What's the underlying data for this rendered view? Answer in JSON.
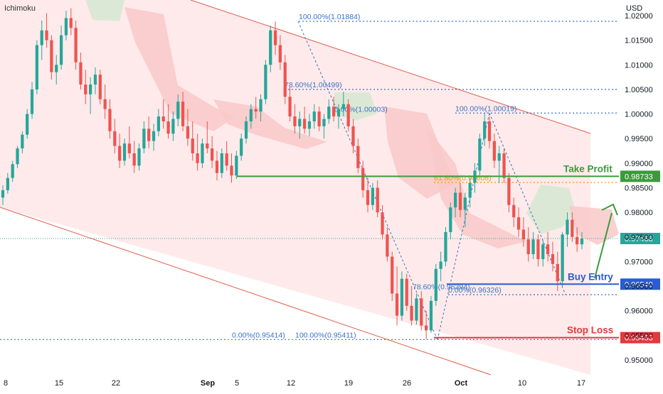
{
  "header": {
    "indicator": "Ichimoku",
    "currency": "USD"
  },
  "colors": {
    "up": "#26a69a",
    "down": "#ef5350",
    "channel_fill": "#fde3e3",
    "channel_line": "#e25b4a",
    "cloud_red": "#f9c9c9",
    "cloud_green": "#d6e8d2",
    "fib": "#3a73c4",
    "green_line": "#3c9a3c",
    "blue_line": "#2a5bd7",
    "red_line": "#e0393e",
    "gold": "#e0a100",
    "axis_text": "#131722",
    "current_label": "#26a69a"
  },
  "chart_data": {
    "type": "candlestick",
    "y_axis": {
      "min": 0.945,
      "max": 1.025,
      "ticks": [
        "0.95000",
        "0.95500",
        "0.96000",
        "0.96500",
        "0.97000",
        "0.97500",
        "0.98000",
        "0.98500",
        "0.99000",
        "0.99500",
        "1.00000",
        "1.00500",
        "1.01000",
        "1.01500",
        "1.02000"
      ]
    },
    "x_axis": {
      "ticks": [
        "8",
        "15",
        "22",
        "Sep",
        "5",
        "12",
        "19",
        "26",
        "Oct",
        "10",
        "17"
      ]
    },
    "candles": [
      [
        0.983,
        0.9855,
        0.9815,
        0.9845
      ],
      [
        0.9845,
        0.988,
        0.9838,
        0.987
      ],
      [
        0.987,
        0.9905,
        0.9862,
        0.9898
      ],
      [
        0.9898,
        0.9935,
        0.989,
        0.993
      ],
      [
        0.993,
        0.9965,
        0.992,
        0.9958
      ],
      [
        0.9958,
        1.001,
        0.995,
        1.0
      ],
      [
        1.0,
        1.0065,
        0.999,
        1.005
      ],
      [
        1.005,
        1.015,
        1.004,
        1.014
      ],
      [
        1.014,
        1.019,
        1.011,
        1.017
      ],
      [
        1.017,
        1.0205,
        1.0135,
        1.015
      ],
      [
        1.015,
        1.016,
        1.007,
        1.0085
      ],
      [
        1.0085,
        1.012,
        1.006,
        1.01
      ],
      [
        1.01,
        1.018,
        1.009,
        1.016
      ],
      [
        1.016,
        1.021,
        1.015,
        1.0195
      ],
      [
        1.0195,
        1.0215,
        1.016,
        1.0175
      ],
      [
        1.0175,
        1.019,
        1.009,
        1.0105
      ],
      [
        1.0105,
        1.0125,
        1.005,
        1.006
      ],
      [
        1.006,
        1.009,
        1.002,
        1.004
      ],
      [
        1.004,
        1.0075,
        1.0,
        1.006
      ],
      [
        1.006,
        1.0095,
        1.004,
        1.008
      ],
      [
        1.008,
        1.009,
        1.002,
        1.003
      ],
      [
        1.003,
        1.006,
        0.999,
        1.001
      ],
      [
        1.001,
        1.003,
        0.995,
        0.9965
      ],
      [
        0.9965,
        0.999,
        0.992,
        0.9935
      ],
      [
        0.9935,
        0.996,
        0.989,
        0.9905
      ],
      [
        0.9905,
        0.995,
        0.9895,
        0.994
      ],
      [
        0.994,
        0.9975,
        0.991,
        0.992
      ],
      [
        0.992,
        0.9945,
        0.988,
        0.9895
      ],
      [
        0.9895,
        0.994,
        0.9885,
        0.993
      ],
      [
        0.993,
        0.9985,
        0.992,
        0.997
      ],
      [
        0.997,
        0.9995,
        0.993,
        0.9945
      ],
      [
        0.9945,
        0.998,
        0.9925,
        0.9965
      ],
      [
        0.9965,
        1.001,
        0.9955,
        0.9995
      ],
      [
        0.9995,
        1.003,
        0.997,
        0.9985
      ],
      [
        0.9985,
        1.002,
        0.995,
        0.996
      ],
      [
        0.996,
        1.0005,
        0.9945,
        0.999
      ],
      [
        0.999,
        1.004,
        0.9975,
        1.0025
      ],
      [
        1.0025,
        1.0045,
        0.9965,
        0.9975
      ],
      [
        0.9975,
        1.001,
        0.9935,
        0.995
      ],
      [
        0.995,
        0.9985,
        0.9905,
        0.992
      ],
      [
        0.992,
        0.996,
        0.9885,
        0.99
      ],
      [
        0.99,
        0.995,
        0.989,
        0.994
      ],
      [
        0.994,
        0.9985,
        0.992,
        0.993
      ],
      [
        0.993,
        0.9955,
        0.989,
        0.9905
      ],
      [
        0.9905,
        0.9925,
        0.9865,
        0.988
      ],
      [
        0.988,
        0.993,
        0.987,
        0.992
      ],
      [
        0.992,
        0.9945,
        0.9885,
        0.9895
      ],
      [
        0.9895,
        0.992,
        0.986,
        0.9875
      ],
      [
        0.9875,
        0.9925,
        0.9868,
        0.9915
      ],
      [
        0.9915,
        0.996,
        0.9905,
        0.995
      ],
      [
        0.995,
        0.9995,
        0.994,
        0.9985
      ],
      [
        0.9985,
        1.002,
        0.997,
        1.001
      ],
      [
        1.001,
        1.0035,
        0.999,
        1.0005
      ],
      [
        1.0005,
        1.004,
        0.9985,
        1.003
      ],
      [
        1.003,
        1.011,
        1.002,
        1.01
      ],
      [
        1.01,
        1.018,
        1.0085,
        1.017
      ],
      [
        1.017,
        1.0188,
        1.012,
        1.014
      ],
      [
        1.014,
        1.016,
        1.009,
        1.0105
      ],
      [
        1.0105,
        1.012,
        1.002,
        1.0035
      ],
      [
        1.0035,
        1.0055,
        0.9985,
        0.9995
      ],
      [
        0.9995,
        1.002,
        0.996,
        0.9975
      ],
      [
        0.9975,
        1.0005,
        0.995,
        0.999
      ],
      [
        0.999,
        1.0015,
        0.996,
        0.997
      ],
      [
        0.997,
        1.0,
        0.9955,
        0.9985
      ],
      [
        0.9985,
        1.002,
        0.997,
        1.0005
      ],
      [
        1.0005,
        1.0015,
        0.9965,
        0.9975
      ],
      [
        0.9975,
        1.0,
        0.995,
        0.999
      ],
      [
        0.999,
        1.003,
        0.998,
        1.0015
      ],
      [
        1.0015,
        1.0035,
        0.9985,
        0.9995
      ],
      [
        0.9995,
        1.002,
        0.997,
        1.001
      ],
      [
        1.001,
        1.0045,
        0.9995,
        1.002
      ],
      [
        1.002,
        1.003,
        0.9965,
        0.9975
      ],
      [
        0.9975,
        0.999,
        0.992,
        0.9935
      ],
      [
        0.9935,
        0.995,
        0.988,
        0.989
      ],
      [
        0.989,
        0.9905,
        0.983,
        0.9845
      ],
      [
        0.9845,
        0.987,
        0.98,
        0.9815
      ],
      [
        0.9815,
        0.986,
        0.9805,
        0.985
      ],
      [
        0.985,
        0.9865,
        0.979,
        0.98
      ],
      [
        0.98,
        0.9815,
        0.9745,
        0.9755
      ],
      [
        0.9755,
        0.977,
        0.97,
        0.971
      ],
      [
        0.971,
        0.972,
        0.962,
        0.9635
      ],
      [
        0.9635,
        0.969,
        0.957,
        0.959
      ],
      [
        0.959,
        0.968,
        0.958,
        0.9665
      ],
      [
        0.9665,
        0.9675,
        0.96,
        0.961
      ],
      [
        0.961,
        0.965,
        0.957,
        0.958
      ],
      [
        0.958,
        0.9635,
        0.9572,
        0.9625
      ],
      [
        0.9625,
        0.964,
        0.956,
        0.957
      ],
      [
        0.957,
        0.96,
        0.9542,
        0.956
      ],
      [
        0.956,
        0.963,
        0.9555,
        0.962
      ],
      [
        0.962,
        0.9695,
        0.961,
        0.9685
      ],
      [
        0.9685,
        0.972,
        0.966,
        0.97
      ],
      [
        0.97,
        0.977,
        0.969,
        0.976
      ],
      [
        0.976,
        0.982,
        0.9745,
        0.981
      ],
      [
        0.981,
        0.985,
        0.979,
        0.984
      ],
      [
        0.984,
        0.986,
        0.979,
        0.9805
      ],
      [
        0.9805,
        0.984,
        0.977,
        0.983
      ],
      [
        0.983,
        0.987,
        0.981,
        0.986
      ],
      [
        0.986,
        0.99,
        0.984,
        0.9885
      ],
      [
        0.9885,
        0.996,
        0.9875,
        0.995
      ],
      [
        0.995,
        1.0002,
        0.9935,
        0.9985
      ],
      [
        0.9985,
        0.9995,
        0.993,
        0.9945
      ],
      [
        0.9945,
        0.996,
        0.989,
        0.9905
      ],
      [
        0.9905,
        0.9935,
        0.986,
        0.992
      ],
      [
        0.992,
        0.993,
        0.986,
        0.987
      ],
      [
        0.987,
        0.988,
        0.98,
        0.9815
      ],
      [
        0.9815,
        0.983,
        0.977,
        0.979
      ],
      [
        0.979,
        0.981,
        0.975,
        0.9765
      ],
      [
        0.9765,
        0.979,
        0.973,
        0.9745
      ],
      [
        0.9745,
        0.977,
        0.97,
        0.9715
      ],
      [
        0.9715,
        0.976,
        0.9705,
        0.9745
      ],
      [
        0.9745,
        0.9755,
        0.969,
        0.9705
      ],
      [
        0.9705,
        0.9745,
        0.969,
        0.9735
      ],
      [
        0.9735,
        0.976,
        0.97,
        0.9715
      ],
      [
        0.9715,
        0.974,
        0.968,
        0.9695
      ],
      [
        0.9695,
        0.972,
        0.964,
        0.966
      ],
      [
        0.966,
        0.976,
        0.965,
        0.9755
      ],
      [
        0.9755,
        0.98,
        0.973,
        0.9785
      ],
      [
        0.9785,
        0.98,
        0.974,
        0.975
      ],
      [
        0.975,
        0.977,
        0.972,
        0.9735
      ],
      [
        0.9735,
        0.976,
        0.9725,
        0.9747
      ]
    ],
    "horizontal_levels": [
      {
        "price": 1.01884,
        "label": "100.00%(1.01884)",
        "style": "fib"
      },
      {
        "price": 1.00499,
        "label": "78.60%(1.00499)",
        "style": "fib"
      },
      {
        "price": 1.00019,
        "label": "100.00%(1.00019)",
        "style": "fib"
      },
      {
        "price": 1.00003,
        "label": "0.00%(1.00003)",
        "style": "fib-plain"
      },
      {
        "price": 0.98608,
        "label": "61.80%(0.98608)",
        "style": "gold"
      },
      {
        "price": 0.96394,
        "label": "78.60%(0.96394)",
        "style": "fib-plain"
      },
      {
        "price": 0.96326,
        "label": "0.00%(0.96326)",
        "style": "fib"
      },
      {
        "price": 0.95414,
        "label": "0.00%(0.95414)",
        "style": "fib"
      },
      {
        "price": 0.95411,
        "label": "100.00%(0.95411)",
        "style": "fib-plain"
      }
    ],
    "trade_levels": [
      {
        "name": "Take Profit",
        "price": 0.98733,
        "price_label": "0.98733",
        "color": "green"
      },
      {
        "name": "Buy Entry",
        "price": 0.9654,
        "price_label": "0.96540",
        "color": "blue"
      },
      {
        "name": "Stop Loss",
        "price": 0.95453,
        "price_label": "0.95453",
        "color": "red"
      }
    ],
    "current_price": {
      "price": 0.97468,
      "label": "0.97468"
    }
  }
}
